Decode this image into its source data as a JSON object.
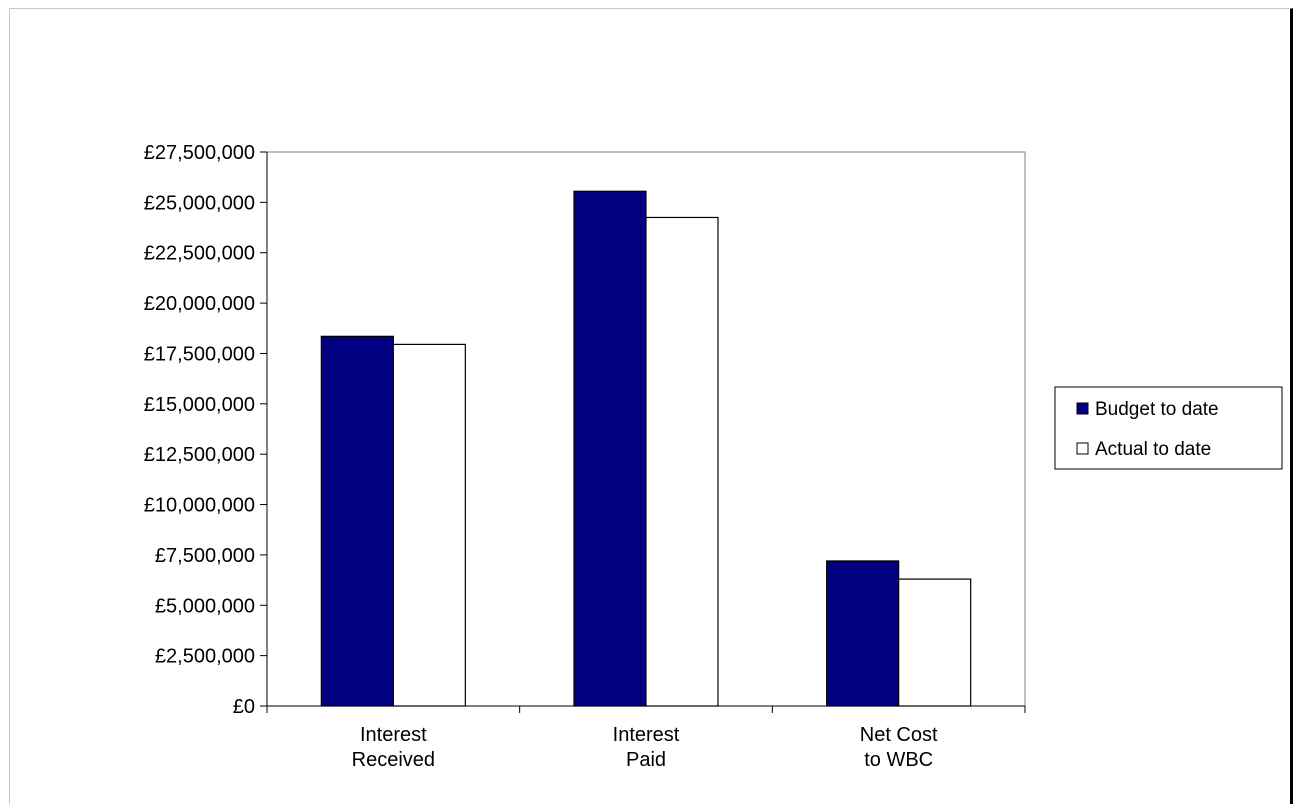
{
  "chart_data": {
    "type": "bar",
    "categories": [
      [
        "Interest",
        "Received"
      ],
      [
        "Interest",
        "Paid"
      ],
      [
        "Net Cost",
        "to WBC"
      ]
    ],
    "series": [
      {
        "name": "Budget to date",
        "values": [
          18350000,
          25550000,
          7200000
        ],
        "color": "#000080"
      },
      {
        "name": "Actual to date",
        "values": [
          17950000,
          24250000,
          6300000
        ],
        "color": "#ffffff"
      }
    ],
    "ylim": [
      0,
      27500000
    ],
    "ytick_step": 2500000,
    "ytick_labels": [
      "£0",
      "£2,500,000",
      "£5,000,000",
      "£7,500,000",
      "£10,000,000",
      "£12,500,000",
      "£15,000,000",
      "£17,500,000",
      "£20,000,000",
      "£22,500,000",
      "£25,000,000",
      "£27,500,000"
    ],
    "title": "",
    "xlabel": "",
    "ylabel": "",
    "grid": false,
    "legend_position": "right"
  }
}
